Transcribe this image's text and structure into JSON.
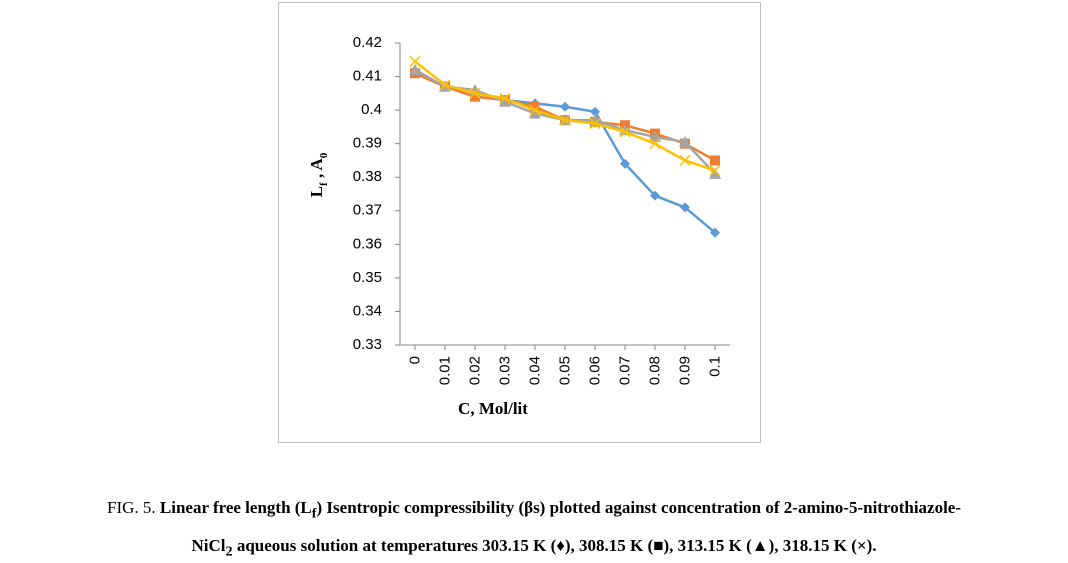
{
  "chart_data": {
    "type": "line",
    "y_label": [
      "L",
      "f",
      " , A",
      "0"
    ],
    "x_label": "C, Mol/lit",
    "categories": [
      "0",
      "0.01",
      "0.02",
      "0.03",
      "0.04",
      "0.05",
      "0.06",
      "0.07",
      "0.08",
      "0.09",
      "0.1"
    ],
    "series": [
      {
        "color": "#5b9bd5",
        "marker": "diamond",
        "values": [
          0.411,
          0.407,
          0.404,
          0.403,
          0.402,
          0.401,
          0.3995,
          0.384,
          0.3745,
          0.371,
          0.3635
        ]
      },
      {
        "color": "#ed7d31",
        "marker": "square",
        "values": [
          0.411,
          0.407,
          0.404,
          0.403,
          0.401,
          0.397,
          0.3965,
          0.3955,
          0.393,
          0.39,
          0.385
        ]
      },
      {
        "color": "#a5a5a5",
        "marker": "triangle",
        "values": [
          0.412,
          0.407,
          0.406,
          0.4025,
          0.399,
          0.397,
          0.397,
          0.394,
          0.392,
          0.3905,
          0.381
        ]
      },
      {
        "color": "#ffc000",
        "marker": "x",
        "values": [
          0.4145,
          0.4075,
          0.405,
          0.4035,
          0.4,
          0.397,
          0.396,
          0.3935,
          0.39,
          0.385,
          0.382
        ]
      }
    ],
    "ylim": [
      0.33,
      0.42
    ],
    "yticks": [
      0.33,
      0.34,
      0.35,
      0.36,
      0.37,
      0.38,
      0.39,
      0.4,
      0.41,
      0.42
    ],
    "grid": false
  },
  "caption": {
    "parts": [
      "FIG. 5. ",
      "Linear free length (L",
      "f",
      ") Isentropic compressibility (βs) plotted against concentration of 2-amino-5-nitrothiazole-",
      "NiCl",
      "2",
      " aqueous solution at temperatures 303.15 K (♦), 308.15 K (■), 313.15 K (▲), 318.15 K (×)."
    ]
  }
}
